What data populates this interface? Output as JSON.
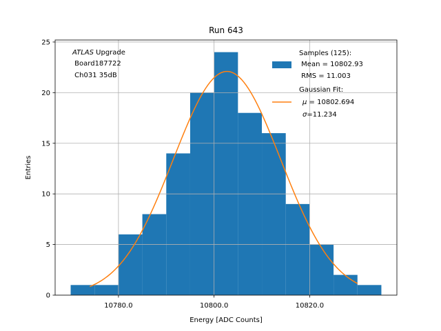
{
  "chart_data": {
    "type": "bar",
    "title": "Run 643",
    "xlabel": "Energy [ADC Counts]",
    "ylabel": "Entries",
    "xlim": [
      10766.75,
      10838.25
    ],
    "ylim": [
      0,
      25.2
    ],
    "xticks": [
      10780.0,
      10800.0,
      10820.0
    ],
    "xtick_labels": [
      "10780.0",
      "10800.0",
      "10820.0"
    ],
    "yticks": [
      0,
      5,
      10,
      15,
      20,
      25
    ],
    "ytick_labels": [
      "0",
      "5",
      "10",
      "15",
      "20",
      "25"
    ],
    "grid": true,
    "bin_edges": [
      10770,
      10775,
      10780,
      10785,
      10790,
      10795,
      10800,
      10805,
      10810,
      10815,
      10820,
      10825,
      10830,
      10835
    ],
    "bin_counts": [
      1,
      1,
      6,
      8,
      14,
      20,
      24,
      18,
      16,
      9,
      5,
      2,
      1
    ],
    "histogram_color": "#1f77b4",
    "fit": {
      "type": "gaussian",
      "mu": 10802.694,
      "sigma": 11.234,
      "amplitude": 22.1,
      "x_range": [
        10774,
        10830
      ],
      "color": "#ff7f0e"
    },
    "annotation": {
      "line1_italic": "ATLAS",
      "line1_rest": " Upgrade",
      "line2": " Board187722",
      "line3": " Ch031 35dB"
    },
    "legend": {
      "position": "top-right",
      "samples_line1": "Samples (125):",
      "samples_line2": " Mean = 10802.93",
      "samples_line3": " RMS = 11.003",
      "fit_line1": "Gaussian Fit:",
      "fit_line2_sym": "μ",
      "fit_line2_rest": " = 10802.694",
      "fit_line3_sym": "σ",
      "fit_line3_rest": "=11.234"
    }
  }
}
